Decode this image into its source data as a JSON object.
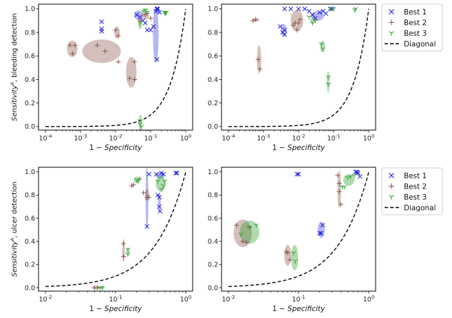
{
  "figure": {
    "type": "ROC-style scatter grid (4 panels)"
  },
  "legend": {
    "entries": [
      {
        "label": "Best 1",
        "marker": "x",
        "color": "#1f1fdd"
      },
      {
        "label": "Best 2",
        "marker": "+",
        "color": "#8c564b"
      },
      {
        "label": "Best 3",
        "marker": "tri_down",
        "color": "#2ca02c"
      },
      {
        "label": "Diagonal",
        "marker": "dashed-line",
        "color": "#000000"
      }
    ]
  },
  "colors": {
    "best1": "#1f1fdd",
    "best2": "#8c564b",
    "best3": "#2ca02c",
    "diagonal": "#000000"
  },
  "chart_data": [
    {
      "type": "scatter",
      "panel": "top-left",
      "xscale": "log",
      "xlim": [
        0.0001,
        1
      ],
      "ylim": [
        -0.03,
        1.04
      ],
      "xticks": [
        "10^-4",
        "10^-3",
        "10^-2",
        "10^-1",
        "10^0"
      ],
      "yticks": [
        "0.0",
        "0.2",
        "0.4",
        "0.6",
        "0.8",
        "1.0"
      ],
      "xlabel": "1 − Specificity",
      "ylabel": "Sensitivity^A, bleeding detection",
      "diagonal": true,
      "series": [
        {
          "name": "Best 1",
          "points": [
            [
              0.004,
              0.89
            ],
            [
              0.004,
              0.83
            ],
            [
              0.004,
              0.81
            ],
            [
              0.04,
              0.95
            ],
            [
              0.05,
              0.93
            ],
            [
              0.06,
              0.9
            ],
            [
              0.07,
              0.88
            ],
            [
              0.08,
              0.82
            ],
            [
              0.1,
              0.82
            ],
            [
              0.12,
              0.85
            ],
            [
              0.15,
              0.57
            ],
            [
              0.15,
              1.0
            ],
            [
              0.16,
              1.0
            ],
            [
              0.18,
              0.97
            ],
            [
              0.14,
              0.98
            ]
          ],
          "ellipses": [
            {
              "cx": 0.045,
              "cy": 0.945,
              "rx_dec": 0.12,
              "ry": 0.04
            },
            {
              "cx": 0.14,
              "cy": 0.78,
              "rx_dec": 0.08,
              "ry": 0.24
            },
            {
              "cx": 0.16,
              "cy": 0.99,
              "rx_dec": 0.06,
              "ry": 0.02
            }
          ]
        },
        {
          "name": "Best 2",
          "points": [
            [
              0.0005,
              0.69
            ],
            [
              0.0006,
              0.62
            ],
            [
              0.0007,
              0.69
            ],
            [
              0.003,
              0.69
            ],
            [
              0.005,
              0.64
            ],
            [
              0.01,
              0.82
            ],
            [
              0.012,
              0.77
            ],
            [
              0.012,
              0.55
            ],
            [
              0.025,
              0.41
            ],
            [
              0.035,
              0.4
            ],
            [
              0.035,
              0.55
            ],
            [
              0.05,
              0.9
            ],
            [
              0.07,
              0.95
            ],
            [
              0.08,
              0.96
            ],
            [
              0.1,
              0.92
            ]
          ],
          "ellipses": [
            {
              "cx": 0.00058,
              "cy": 0.66,
              "rx_dec": 0.15,
              "ry": 0.07
            },
            {
              "cx": 0.004,
              "cy": 0.64,
              "rx_dec": 0.55,
              "ry": 0.1
            },
            {
              "cx": 0.011,
              "cy": 0.8,
              "rx_dec": 0.08,
              "ry": 0.05
            },
            {
              "cx": 0.028,
              "cy": 0.46,
              "rx_dec": 0.15,
              "ry": 0.13
            },
            {
              "cx": 0.07,
              "cy": 0.94,
              "rx_dec": 0.1,
              "ry": 0.03
            }
          ]
        },
        {
          "name": "Best 3",
          "points": [
            [
              0.05,
              0.88
            ],
            [
              0.05,
              0.05
            ],
            [
              0.05,
              0.02
            ],
            [
              0.055,
              0.0
            ],
            [
              0.06,
              0.98
            ],
            [
              0.07,
              0.99
            ],
            [
              0.08,
              0.97
            ],
            [
              0.25,
              0.97
            ],
            [
              0.26,
              0.96
            ],
            [
              0.28,
              0.97
            ]
          ],
          "ellipses": [
            {
              "cx": 0.05,
              "cy": 0.87,
              "rx_dec": 0.06,
              "ry": 0.04
            },
            {
              "cx": 0.051,
              "cy": 0.03,
              "rx_dec": 0.05,
              "ry": 0.07
            },
            {
              "cx": 0.07,
              "cy": 0.985,
              "rx_dec": 0.07,
              "ry": 0.02
            },
            {
              "cx": 0.26,
              "cy": 0.965,
              "rx_dec": 0.05,
              "ry": 0.02
            }
          ]
        }
      ]
    },
    {
      "type": "scatter",
      "panel": "top-right",
      "xscale": "log",
      "xlim": [
        0.0001,
        1
      ],
      "ylim": [
        -0.03,
        1.04
      ],
      "xticks": [
        "10^-4",
        "10^-3",
        "10^-2",
        "10^-1",
        "10^0"
      ],
      "yticks": [
        "0.0",
        "0.2",
        "0.4",
        "0.6",
        "0.8",
        "1.0"
      ],
      "xlabel": "1 − Specificity",
      "ylabel": "",
      "diagonal": true,
      "series": [
        {
          "name": "Best 1",
          "points": [
            [
              0.003,
              0.85
            ],
            [
              0.0035,
              0.8
            ],
            [
              0.004,
              0.82
            ],
            [
              0.004,
              0.78
            ],
            [
              0.004,
              1.0
            ],
            [
              0.006,
              1.0
            ],
            [
              0.01,
              1.0
            ],
            [
              0.015,
              1.0
            ],
            [
              0.02,
              0.98
            ],
            [
              0.025,
              0.95
            ],
            [
              0.03,
              0.92
            ],
            [
              0.04,
              0.97
            ],
            [
              0.05,
              0.98
            ],
            [
              0.06,
              0.96
            ],
            [
              0.08,
              1.0
            ],
            [
              0.09,
              1.0
            ]
          ],
          "ellipses": [
            {
              "cx": 0.0038,
              "cy": 0.82,
              "rx_dec": 0.08,
              "ry": 0.05
            },
            {
              "cx": 0.035,
              "cy": 0.94,
              "rx_dec": 0.18,
              "ry": 0.04
            }
          ]
        },
        {
          "name": "Best 2",
          "points": [
            [
              0.0005,
              0.9
            ],
            [
              0.0006,
              0.91
            ],
            [
              0.0007,
              0.57
            ],
            [
              0.0008,
              0.49
            ],
            [
              0.007,
              0.86
            ],
            [
              0.008,
              0.88
            ],
            [
              0.009,
              0.82
            ],
            [
              0.01,
              0.88
            ],
            [
              0.011,
              0.91
            ]
          ],
          "ellipses": [
            {
              "cx": 0.0006,
              "cy": 0.905,
              "rx_dec": 0.1,
              "ry": 0.015
            },
            {
              "cx": 0.00075,
              "cy": 0.57,
              "rx_dec": 0.06,
              "ry": 0.12
            },
            {
              "cx": 0.009,
              "cy": 0.9,
              "rx_dec": 0.18,
              "ry": 0.09
            }
          ]
        },
        {
          "name": "Best 3",
          "points": [
            [
              0.02,
              0.93
            ],
            [
              0.025,
              0.88
            ],
            [
              0.03,
              0.9
            ],
            [
              0.045,
              0.7
            ],
            [
              0.05,
              0.66
            ],
            [
              0.07,
              0.42
            ],
            [
              0.07,
              0.36
            ],
            [
              0.08,
              1.0
            ],
            [
              0.1,
              1.0
            ],
            [
              0.4,
              0.99
            ],
            [
              0.42,
              1.0
            ]
          ],
          "ellipses": [
            {
              "cx": 0.025,
              "cy": 0.9,
              "rx_dec": 0.06,
              "ry": 0.03
            },
            {
              "cx": 0.048,
              "cy": 0.68,
              "rx_dec": 0.07,
              "ry": 0.05
            },
            {
              "cx": 0.07,
              "cy": 0.38,
              "rx_dec": 0.04,
              "ry": 0.09
            }
          ]
        }
      ]
    },
    {
      "type": "scatter",
      "panel": "bottom-left",
      "xscale": "log",
      "xlim": [
        0.01,
        1
      ],
      "ylim": [
        -0.03,
        1.04
      ],
      "xticks": [
        "10^-2",
        "10^-1",
        "10^0"
      ],
      "yticks": [
        "0.0",
        "0.2",
        "0.4",
        "0.6",
        "0.8",
        "1.0"
      ],
      "xlabel": "1 − Specificity",
      "ylabel": "Sensitivity^A, ulcer detection",
      "diagonal": true,
      "series": [
        {
          "name": "Best 1",
          "points": [
            [
              0.28,
              0.53
            ],
            [
              0.3,
              0.98
            ],
            [
              0.38,
              0.98
            ],
            [
              0.4,
              0.8
            ],
            [
              0.42,
              0.78
            ],
            [
              0.42,
              0.7
            ],
            [
              0.43,
              0.66
            ],
            [
              0.45,
              0.99
            ],
            [
              0.48,
              0.98
            ],
            [
              0.72,
              0.99
            ],
            [
              0.75,
              0.99
            ]
          ],
          "ellipses": [
            {
              "cx": 0.28,
              "cy": 0.77,
              "rx_dec": 0.02,
              "ry": 0.28
            },
            {
              "cx": 0.42,
              "cy": 0.73,
              "rx_dec": 0.02,
              "ry": 0.08
            },
            {
              "cx": 0.43,
              "cy": 0.97,
              "rx_dec": 0.06,
              "ry": 0.03
            }
          ]
        },
        {
          "name": "Best 2",
          "points": [
            [
              0.05,
              0.0
            ],
            [
              0.055,
              0.0
            ],
            [
              0.13,
              0.38
            ],
            [
              0.13,
              0.27
            ],
            [
              0.17,
              0.88
            ],
            [
              0.18,
              0.89
            ],
            [
              0.22,
              0.94
            ],
            [
              0.25,
              0.82
            ],
            [
              0.28,
              0.78
            ],
            [
              0.3,
              0.78
            ]
          ],
          "ellipses": [
            {
              "cx": 0.052,
              "cy": 0.0,
              "rx_dec": 0.05,
              "ry": 0.015
            },
            {
              "cx": 0.13,
              "cy": 0.32,
              "rx_dec": 0.015,
              "ry": 0.1
            },
            {
              "cx": 0.28,
              "cy": 0.8,
              "rx_dec": 0.03,
              "ry": 0.05
            }
          ]
        },
        {
          "name": "Best 3",
          "points": [
            [
              0.06,
              0.0
            ],
            [
              0.065,
              0.0
            ],
            [
              0.15,
              0.33
            ],
            [
              0.15,
              0.29
            ],
            [
              0.2,
              0.93
            ],
            [
              0.21,
              0.92
            ],
            [
              0.4,
              0.92
            ],
            [
              0.45,
              0.85
            ],
            [
              0.48,
              0.88
            ],
            [
              0.5,
              0.92
            ]
          ],
          "ellipses": [
            {
              "cx": 0.063,
              "cy": 0.0,
              "rx_dec": 0.04,
              "ry": 0.015
            },
            {
              "cx": 0.15,
              "cy": 0.31,
              "rx_dec": 0.015,
              "ry": 0.04
            },
            {
              "cx": 0.2,
              "cy": 0.93,
              "rx_dec": 0.04,
              "ry": 0.03
            },
            {
              "cx": 0.44,
              "cy": 0.9,
              "rx_dec": 0.07,
              "ry": 0.07
            }
          ]
        }
      ]
    },
    {
      "type": "scatter",
      "panel": "bottom-right",
      "xscale": "log",
      "xlim": [
        0.01,
        1
      ],
      "ylim": [
        -0.03,
        1.04
      ],
      "xticks": [
        "10^-2",
        "10^-1",
        "10^0"
      ],
      "yticks": [
        "0.0",
        "0.2",
        "0.4",
        "0.6",
        "0.8",
        "1.0"
      ],
      "xlabel": "1 − Specificity",
      "ylabel": "",
      "diagonal": true,
      "series": [
        {
          "name": "Best 1",
          "points": [
            [
              0.095,
              0.98
            ],
            [
              0.1,
              0.98
            ],
            [
              0.2,
              0.47
            ],
            [
              0.21,
              0.47
            ],
            [
              0.22,
              0.54
            ],
            [
              0.65,
              1.0
            ],
            [
              0.68,
              1.0
            ],
            [
              0.7,
              0.99
            ],
            [
              0.75,
              0.96
            ]
          ],
          "ellipses": [
            {
              "cx": 0.21,
              "cy": 0.5,
              "rx_dec": 0.05,
              "ry": 0.07
            },
            {
              "cx": 0.7,
              "cy": 0.99,
              "rx_dec": 0.03,
              "ry": 0.02
            }
          ]
        },
        {
          "name": "Best 2",
          "points": [
            [
              0.013,
              0.54
            ],
            [
              0.016,
              0.4
            ],
            [
              0.018,
              0.39
            ],
            [
              0.02,
              0.52
            ],
            [
              0.067,
              0.31
            ],
            [
              0.07,
              0.3
            ],
            [
              0.075,
              0.24
            ],
            [
              0.36,
              0.97
            ],
            [
              0.38,
              0.9
            ],
            [
              0.38,
              0.83
            ],
            [
              0.4,
              0.72
            ]
          ],
          "ellipses": [
            {
              "cx": 0.016,
              "cy": 0.47,
              "rx_dec": 0.13,
              "ry": 0.12
            },
            {
              "cx": 0.07,
              "cy": 0.28,
              "rx_dec": 0.05,
              "ry": 0.09
            },
            {
              "cx": 0.38,
              "cy": 0.85,
              "rx_dec": 0.025,
              "ry": 0.16
            }
          ]
        },
        {
          "name": "Best 3",
          "points": [
            [
              0.015,
              0.46
            ],
            [
              0.02,
              0.52
            ],
            [
              0.025,
              0.54
            ],
            [
              0.085,
              0.3
            ],
            [
              0.09,
              0.23
            ],
            [
              0.42,
              0.87
            ],
            [
              0.45,
              0.87
            ],
            [
              0.5,
              0.95
            ],
            [
              0.55,
              0.96
            ],
            [
              0.62,
              0.97
            ]
          ],
          "ellipses": [
            {
              "cx": 0.02,
              "cy": 0.48,
              "rx_dec": 0.14,
              "ry": 0.1
            },
            {
              "cx": 0.088,
              "cy": 0.26,
              "rx_dec": 0.05,
              "ry": 0.11
            },
            {
              "cx": 0.52,
              "cy": 0.93,
              "rx_dec": 0.08,
              "ry": 0.05
            }
          ]
        }
      ]
    }
  ]
}
